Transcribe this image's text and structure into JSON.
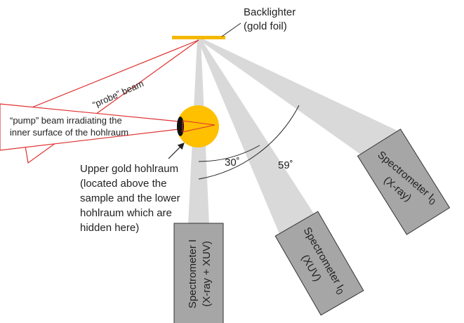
{
  "backlighter": {
    "lines": [
      "Backlighter",
      "(gold foil)"
    ]
  },
  "probe_beam": {
    "label": "“probe” beam"
  },
  "pump_beam": {
    "lines": [
      "“pump” beam irradiating the",
      "inner surface of the hohlraum"
    ]
  },
  "hohlraum": {
    "lines": [
      "Upper gold hohlraum",
      "(located above the",
      "sample and the lower",
      "hohlraum which are",
      "hidden here)"
    ]
  },
  "angles": [
    {
      "label": "30˚"
    },
    {
      "label": "59˚"
    }
  ],
  "spectrometers": [
    {
      "name": "Spectrometer I",
      "detail": "(X-ray + XUV)"
    },
    {
      "name": "Spectrometer I",
      "subscript": "0",
      "detail": "(XUV)"
    },
    {
      "name": "Spectrometer I",
      "subscript": "0",
      "detail": "(X-ray)"
    }
  ]
}
